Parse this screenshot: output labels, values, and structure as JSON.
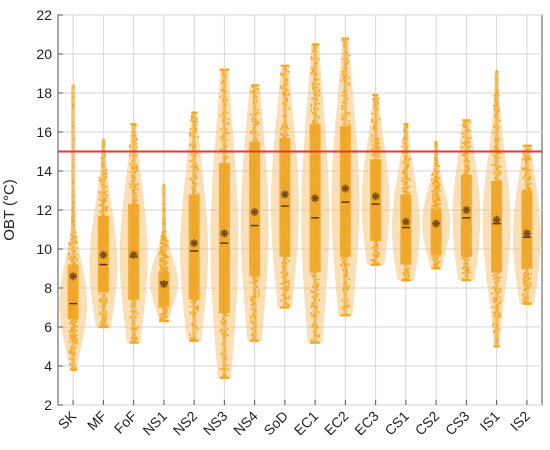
{
  "chart_data": {
    "type": "violin",
    "title": "",
    "xlabel": "",
    "ylabel": "OBT (°C)",
    "ylim": [
      2,
      22
    ],
    "yticks": [
      2,
      4,
      6,
      8,
      10,
      12,
      14,
      16,
      18,
      20,
      22
    ],
    "grid": true,
    "reference_line": {
      "y": 15,
      "color": "#e53935"
    },
    "colors": {
      "violin": "#f5c070",
      "points": "#f7a81c",
      "box": "#f0a526",
      "mean_marker": "#7a4e1a",
      "median_line": "#5a3a10"
    },
    "categories": [
      "SK",
      "MF",
      "FoF",
      "NS1",
      "NS2",
      "NS3",
      "NS4",
      "SoD",
      "EC1",
      "EC2",
      "EC3",
      "CS1",
      "CS2",
      "CS3",
      "IS1",
      "IS2"
    ],
    "min": [
      3.8,
      6.0,
      5.2,
      6.3,
      5.3,
      3.4,
      5.3,
      7.0,
      5.2,
      6.6,
      9.2,
      8.4,
      9.0,
      8.4,
      5.0,
      7.2
    ],
    "q1": [
      6.4,
      7.8,
      7.4,
      7.0,
      7.4,
      6.7,
      8.6,
      9.6,
      8.8,
      9.6,
      10.4,
      9.2,
      9.7,
      9.6,
      8.8,
      9.0
    ],
    "median": [
      7.2,
      9.2,
      9.6,
      8.3,
      9.9,
      10.3,
      11.2,
      12.2,
      11.6,
      12.4,
      12.3,
      11.1,
      11.3,
      11.6,
      11.3,
      10.6
    ],
    "mean": [
      8.6,
      9.7,
      9.7,
      8.2,
      10.3,
      10.8,
      11.9,
      12.8,
      12.6,
      13.1,
      12.7,
      11.4,
      11.3,
      12.0,
      11.5,
      10.8
    ],
    "q3": [
      9.2,
      11.7,
      12.3,
      8.8,
      12.8,
      14.4,
      15.5,
      15.7,
      16.4,
      16.3,
      14.6,
      12.8,
      12.0,
      13.8,
      13.5,
      13.0
    ],
    "max": [
      18.4,
      15.6,
      16.4,
      13.3,
      17.0,
      19.2,
      18.4,
      19.4,
      20.5,
      20.8,
      17.9,
      16.4,
      15.5,
      16.6,
      19.1,
      15.3
    ]
  }
}
